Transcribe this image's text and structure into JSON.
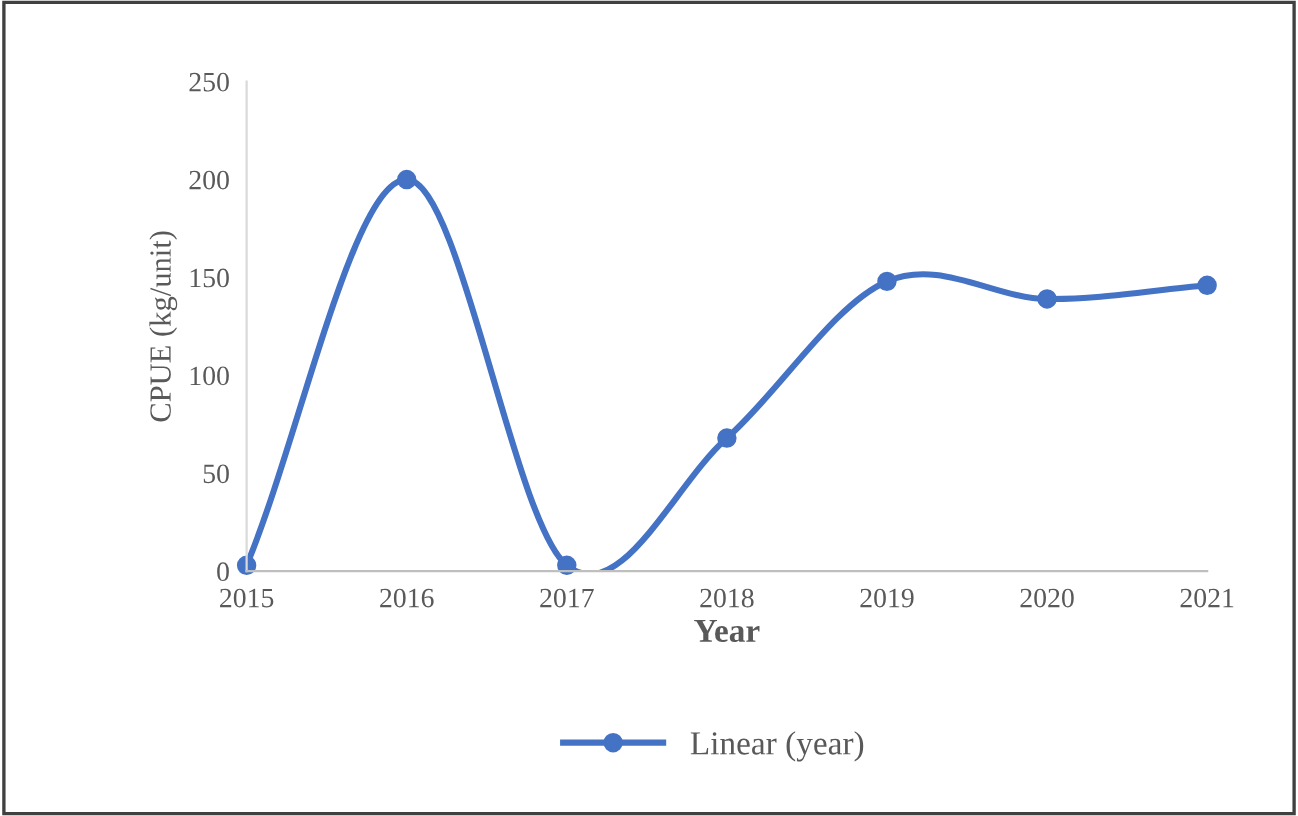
{
  "chart_data": {
    "type": "line",
    "xlabel": "Year",
    "ylabel": "CPUE (kg/unit)",
    "x": [
      2015,
      2016,
      2017,
      2018,
      2019,
      2020,
      2021
    ],
    "series": [
      {
        "name": "Linear (year)",
        "color": "#4472c4",
        "values": [
          3,
          200,
          3,
          68,
          148,
          139,
          146
        ]
      }
    ],
    "xlim": [
      2015,
      2021
    ],
    "xticks": [
      2015,
      2016,
      2017,
      2018,
      2019,
      2020,
      2021
    ],
    "ylim": [
      0,
      250
    ],
    "yticks": [
      0,
      50,
      100,
      150,
      200,
      250
    ],
    "grid": false,
    "legend": "bottom",
    "marker": "circle",
    "line_style": "solid"
  }
}
